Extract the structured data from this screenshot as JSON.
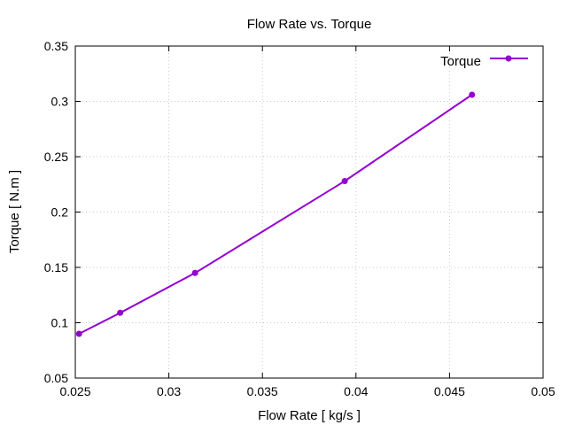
{
  "chart_data": {
    "type": "line",
    "title": "Flow Rate vs. Torque",
    "xlabel": "Flow Rate [ kg/s ]",
    "ylabel": "Torque [ N.m ]",
    "xlim": [
      0.025,
      0.05
    ],
    "ylim": [
      0.05,
      0.35
    ],
    "xticks": [
      "0.025",
      "0.03",
      "0.035",
      "0.04",
      "0.045",
      "0.05"
    ],
    "yticks": [
      "0.05",
      "0.1",
      "0.15",
      "0.2",
      "0.25",
      "0.3",
      "0.35"
    ],
    "grid": true,
    "legend_position": "top-right",
    "series": [
      {
        "name": "Torque",
        "color": "#9400d3",
        "marker": "circle",
        "x": [
          0.0252,
          0.0274,
          0.0314,
          0.0394,
          0.0462
        ],
        "y": [
          0.09,
          0.109,
          0.145,
          0.228,
          0.306
        ]
      }
    ]
  }
}
